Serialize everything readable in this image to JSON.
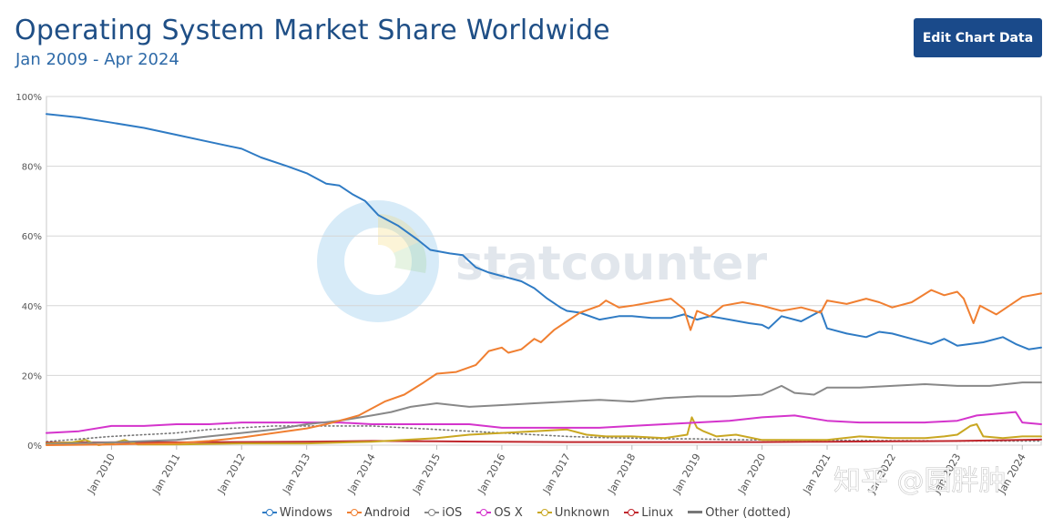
{
  "header": {
    "title": "Operating System Market Share Worldwide",
    "subtitle": "Jan 2009 - Apr 2024",
    "edit_label": "Edit Chart Data"
  },
  "watermarks": {
    "brand": "statcounter",
    "zhihu": "知乎 @圆胖肿"
  },
  "chart_data": {
    "type": "line",
    "title": "Operating System Market Share Worldwide",
    "subtitle": "Jan 2009 - Apr 2024",
    "xlabel": "",
    "ylabel": "",
    "ylim": [
      0,
      100
    ],
    "xlim": [
      2009.0,
      2024.29
    ],
    "y_ticks": [
      "0%",
      "20%",
      "40%",
      "60%",
      "80%",
      "100%"
    ],
    "y_tick_values": [
      0,
      20,
      40,
      60,
      80,
      100
    ],
    "x_ticks": [
      "Jan 2010",
      "Jan 2011",
      "Jan 2012",
      "Jan 2013",
      "Jan 2014",
      "Jan 2015",
      "Jan 2016",
      "Jan 2017",
      "Jan 2018",
      "Jan 2019",
      "Jan 2020",
      "Jan 2021",
      "Jan 2022",
      "Jan 2023",
      "Jan 2024"
    ],
    "x_tick_values": [
      2010,
      2011,
      2012,
      2013,
      2014,
      2015,
      2016,
      2017,
      2018,
      2019,
      2020,
      2021,
      2022,
      2023,
      2024
    ],
    "grid": true,
    "legend_position": "bottom-center",
    "series": [
      {
        "name": "Windows",
        "color": "#2f7bc4",
        "dotted": false,
        "points": [
          [
            2009.0,
            95.0
          ],
          [
            2009.5,
            94.0
          ],
          [
            2010.0,
            92.5
          ],
          [
            2010.5,
            91.0
          ],
          [
            2011.0,
            89.0
          ],
          [
            2011.5,
            87.0
          ],
          [
            2012.0,
            85.0
          ],
          [
            2012.3,
            82.5
          ],
          [
            2012.7,
            80.0
          ],
          [
            2013.0,
            78.0
          ],
          [
            2013.3,
            75.0
          ],
          [
            2013.5,
            74.5
          ],
          [
            2013.7,
            72.0
          ],
          [
            2013.9,
            70.0
          ],
          [
            2014.1,
            66.0
          ],
          [
            2014.4,
            63.0
          ],
          [
            2014.7,
            59.0
          ],
          [
            2014.9,
            56.0
          ],
          [
            2015.2,
            55.0
          ],
          [
            2015.4,
            54.5
          ],
          [
            2015.6,
            51.0
          ],
          [
            2015.8,
            49.5
          ],
          [
            2016.0,
            48.5
          ],
          [
            2016.3,
            47.0
          ],
          [
            2016.5,
            45.0
          ],
          [
            2016.7,
            42.0
          ],
          [
            2016.9,
            39.5
          ],
          [
            2017.0,
            38.5
          ],
          [
            2017.2,
            38.0
          ],
          [
            2017.5,
            36.0
          ],
          [
            2017.8,
            37.0
          ],
          [
            2018.0,
            37.0
          ],
          [
            2018.3,
            36.5
          ],
          [
            2018.6,
            36.5
          ],
          [
            2018.8,
            37.5
          ],
          [
            2019.0,
            36.0
          ],
          [
            2019.2,
            37.0
          ],
          [
            2019.5,
            36.0
          ],
          [
            2019.8,
            35.0
          ],
          [
            2020.0,
            34.5
          ],
          [
            2020.1,
            33.5
          ],
          [
            2020.3,
            37.0
          ],
          [
            2020.6,
            35.5
          ],
          [
            2020.9,
            38.5
          ],
          [
            2021.0,
            33.5
          ],
          [
            2021.3,
            32.0
          ],
          [
            2021.6,
            31.0
          ],
          [
            2021.8,
            32.5
          ],
          [
            2022.0,
            32.0
          ],
          [
            2022.3,
            30.5
          ],
          [
            2022.6,
            29.0
          ],
          [
            2022.8,
            30.5
          ],
          [
            2023.0,
            28.5
          ],
          [
            2023.2,
            29.0
          ],
          [
            2023.4,
            29.5
          ],
          [
            2023.7,
            31.0
          ],
          [
            2023.9,
            29.0
          ],
          [
            2024.1,
            27.5
          ],
          [
            2024.29,
            28.0
          ]
        ]
      },
      {
        "name": "Android",
        "color": "#f07f31",
        "dotted": false,
        "points": [
          [
            2009.0,
            0.0
          ],
          [
            2010.0,
            0.2
          ],
          [
            2011.0,
            0.6
          ],
          [
            2011.5,
            1.2
          ],
          [
            2012.0,
            2.2
          ],
          [
            2012.5,
            3.5
          ],
          [
            2013.0,
            4.8
          ],
          [
            2013.3,
            6.0
          ],
          [
            2013.6,
            7.5
          ],
          [
            2013.8,
            8.5
          ],
          [
            2014.0,
            10.5
          ],
          [
            2014.2,
            12.5
          ],
          [
            2014.5,
            14.5
          ],
          [
            2014.8,
            18.0
          ],
          [
            2015.0,
            20.5
          ],
          [
            2015.3,
            21.0
          ],
          [
            2015.6,
            23.0
          ],
          [
            2015.8,
            27.0
          ],
          [
            2016.0,
            28.0
          ],
          [
            2016.1,
            26.5
          ],
          [
            2016.3,
            27.5
          ],
          [
            2016.5,
            30.5
          ],
          [
            2016.6,
            29.5
          ],
          [
            2016.8,
            33.0
          ],
          [
            2017.0,
            35.5
          ],
          [
            2017.2,
            38.0
          ],
          [
            2017.5,
            40.0
          ],
          [
            2017.6,
            41.5
          ],
          [
            2017.8,
            39.5
          ],
          [
            2018.0,
            40.0
          ],
          [
            2018.3,
            41.0
          ],
          [
            2018.6,
            42.0
          ],
          [
            2018.8,
            39.0
          ],
          [
            2018.9,
            33.0
          ],
          [
            2019.0,
            38.5
          ],
          [
            2019.2,
            37.0
          ],
          [
            2019.4,
            40.0
          ],
          [
            2019.7,
            41.0
          ],
          [
            2020.0,
            40.0
          ],
          [
            2020.3,
            38.5
          ],
          [
            2020.6,
            39.5
          ],
          [
            2020.9,
            38.0
          ],
          [
            2021.0,
            41.5
          ],
          [
            2021.3,
            40.5
          ],
          [
            2021.6,
            42.0
          ],
          [
            2021.8,
            41.0
          ],
          [
            2022.0,
            39.5
          ],
          [
            2022.3,
            41.0
          ],
          [
            2022.6,
            44.5
          ],
          [
            2022.8,
            43.0
          ],
          [
            2023.0,
            44.0
          ],
          [
            2023.1,
            42.0
          ],
          [
            2023.25,
            35.0
          ],
          [
            2023.35,
            40.0
          ],
          [
            2023.6,
            37.5
          ],
          [
            2023.8,
            40.0
          ],
          [
            2024.0,
            42.5
          ],
          [
            2024.29,
            43.5
          ]
        ]
      },
      {
        "name": "iOS",
        "color": "#888888",
        "dotted": false,
        "points": [
          [
            2009.0,
            0.3
          ],
          [
            2010.0,
            0.8
          ],
          [
            2011.0,
            1.5
          ],
          [
            2011.5,
            2.5
          ],
          [
            2012.0,
            3.5
          ],
          [
            2012.5,
            4.5
          ],
          [
            2013.0,
            6.0
          ],
          [
            2013.5,
            7.0
          ],
          [
            2014.0,
            8.5
          ],
          [
            2014.3,
            9.5
          ],
          [
            2014.6,
            11.0
          ],
          [
            2015.0,
            12.0
          ],
          [
            2015.5,
            11.0
          ],
          [
            2016.0,
            11.5
          ],
          [
            2016.5,
            12.0
          ],
          [
            2017.0,
            12.5
          ],
          [
            2017.5,
            13.0
          ],
          [
            2018.0,
            12.5
          ],
          [
            2018.5,
            13.5
          ],
          [
            2019.0,
            14.0
          ],
          [
            2019.5,
            14.0
          ],
          [
            2020.0,
            14.5
          ],
          [
            2020.3,
            17.0
          ],
          [
            2020.5,
            15.0
          ],
          [
            2020.8,
            14.5
          ],
          [
            2021.0,
            16.5
          ],
          [
            2021.5,
            16.5
          ],
          [
            2022.0,
            17.0
          ],
          [
            2022.5,
            17.5
          ],
          [
            2023.0,
            17.0
          ],
          [
            2023.5,
            17.0
          ],
          [
            2024.0,
            18.0
          ],
          [
            2024.29,
            18.0
          ]
        ]
      },
      {
        "name": "OS X",
        "color": "#d434cc",
        "dotted": false,
        "points": [
          [
            2009.0,
            3.5
          ],
          [
            2009.5,
            4.0
          ],
          [
            2010.0,
            5.5
          ],
          [
            2010.5,
            5.5
          ],
          [
            2011.0,
            6.0
          ],
          [
            2011.5,
            6.0
          ],
          [
            2012.0,
            6.5
          ],
          [
            2012.5,
            6.5
          ],
          [
            2013.0,
            6.5
          ],
          [
            2013.5,
            6.5
          ],
          [
            2014.0,
            6.0
          ],
          [
            2014.5,
            6.0
          ],
          [
            2015.0,
            6.0
          ],
          [
            2015.5,
            6.0
          ],
          [
            2016.0,
            5.0
          ],
          [
            2016.5,
            5.0
          ],
          [
            2017.0,
            5.0
          ],
          [
            2017.5,
            5.0
          ],
          [
            2018.0,
            5.5
          ],
          [
            2018.5,
            6.0
          ],
          [
            2019.0,
            6.5
          ],
          [
            2019.5,
            7.0
          ],
          [
            2020.0,
            8.0
          ],
          [
            2020.5,
            8.5
          ],
          [
            2021.0,
            7.0
          ],
          [
            2021.5,
            6.5
          ],
          [
            2022.0,
            6.5
          ],
          [
            2022.5,
            6.5
          ],
          [
            2023.0,
            7.0
          ],
          [
            2023.3,
            8.5
          ],
          [
            2023.6,
            9.0
          ],
          [
            2023.9,
            9.5
          ],
          [
            2024.0,
            6.5
          ],
          [
            2024.29,
            6.0
          ]
        ]
      },
      {
        "name": "Unknown",
        "color": "#c9a722",
        "dotted": false,
        "points": [
          [
            2009.0,
            0.5
          ],
          [
            2009.4,
            0.8
          ],
          [
            2009.6,
            1.5
          ],
          [
            2009.8,
            0.0
          ],
          [
            2010.0,
            0.5
          ],
          [
            2010.2,
            1.5
          ],
          [
            2010.4,
            0.2
          ],
          [
            2011.0,
            0.2
          ],
          [
            2012.0,
            0.5
          ],
          [
            2013.0,
            0.5
          ],
          [
            2014.0,
            1.0
          ],
          [
            2015.0,
            2.0
          ],
          [
            2015.5,
            3.0
          ],
          [
            2016.0,
            3.5
          ],
          [
            2016.5,
            4.0
          ],
          [
            2017.0,
            4.5
          ],
          [
            2017.3,
            3.0
          ],
          [
            2017.6,
            2.5
          ],
          [
            2018.0,
            2.5
          ],
          [
            2018.5,
            2.0
          ],
          [
            2018.85,
            3.0
          ],
          [
            2018.92,
            8.0
          ],
          [
            2019.0,
            5.0
          ],
          [
            2019.1,
            4.0
          ],
          [
            2019.3,
            2.5
          ],
          [
            2019.6,
            3.0
          ],
          [
            2020.0,
            1.5
          ],
          [
            2020.5,
            1.5
          ],
          [
            2021.0,
            1.5
          ],
          [
            2021.5,
            2.5
          ],
          [
            2022.0,
            2.0
          ],
          [
            2022.5,
            2.0
          ],
          [
            2022.8,
            2.5
          ],
          [
            2023.0,
            3.0
          ],
          [
            2023.2,
            5.5
          ],
          [
            2023.3,
            6.0
          ],
          [
            2023.4,
            2.5
          ],
          [
            2023.7,
            2.0
          ],
          [
            2024.0,
            2.5
          ],
          [
            2024.29,
            2.5
          ]
        ]
      },
      {
        "name": "Linux",
        "color": "#c0272d",
        "dotted": false,
        "points": [
          [
            2009.0,
            0.7
          ],
          [
            2010.0,
            0.8
          ],
          [
            2011.0,
            0.8
          ],
          [
            2012.0,
            0.9
          ],
          [
            2013.0,
            1.0
          ],
          [
            2014.0,
            1.2
          ],
          [
            2015.0,
            1.1
          ],
          [
            2016.0,
            1.0
          ],
          [
            2017.0,
            0.9
          ],
          [
            2018.0,
            0.9
          ],
          [
            2019.0,
            0.9
          ],
          [
            2020.0,
            0.9
          ],
          [
            2021.0,
            1.0
          ],
          [
            2022.0,
            1.1
          ],
          [
            2023.0,
            1.2
          ],
          [
            2024.0,
            1.5
          ],
          [
            2024.29,
            1.6
          ]
        ]
      },
      {
        "name": "Other (dotted)",
        "color": "#777777",
        "dotted": true,
        "points": [
          [
            2009.0,
            1.0
          ],
          [
            2010.0,
            2.5
          ],
          [
            2011.0,
            3.5
          ],
          [
            2011.5,
            4.5
          ],
          [
            2012.0,
            5.0
          ],
          [
            2012.5,
            5.5
          ],
          [
            2013.0,
            5.5
          ],
          [
            2013.5,
            5.5
          ],
          [
            2014.0,
            5.5
          ],
          [
            2014.5,
            5.0
          ],
          [
            2015.0,
            4.5
          ],
          [
            2015.5,
            4.0
          ],
          [
            2016.0,
            3.5
          ],
          [
            2016.5,
            3.0
          ],
          [
            2017.0,
            2.5
          ],
          [
            2017.5,
            2.2
          ],
          [
            2018.0,
            2.0
          ],
          [
            2018.5,
            1.8
          ],
          [
            2019.0,
            1.8
          ],
          [
            2019.5,
            1.6
          ],
          [
            2020.0,
            1.5
          ],
          [
            2021.0,
            1.4
          ],
          [
            2022.0,
            1.3
          ],
          [
            2023.0,
            1.2
          ],
          [
            2024.0,
            1.2
          ],
          [
            2024.29,
            1.2
          ]
        ]
      }
    ]
  }
}
